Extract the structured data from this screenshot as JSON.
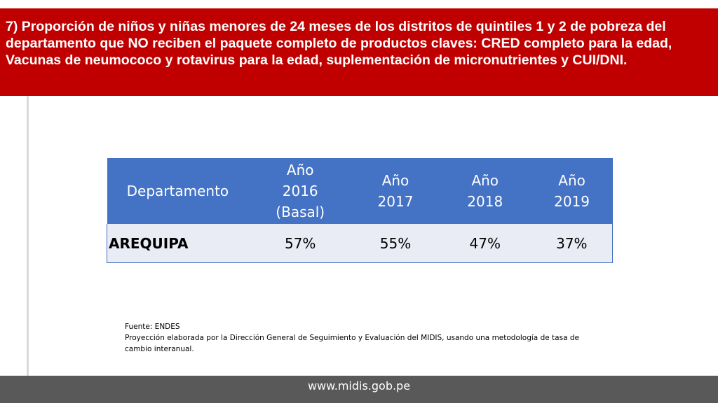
{
  "title": "7) Proporción de niños y niñas menores de 24 meses de los distritos de quintiles 1 y 2 de pobreza del departamento que NO reciben el paquete completo de productos claves: CRED completo para la edad, Vacunas de neumococo y rotavirus para la edad, suplementación de micronutrientes y CUI/DNI.",
  "table": {
    "headers": {
      "departamento": "Departamento",
      "y2016": [
        "Año",
        "2016",
        "(Basal)"
      ],
      "y2017": [
        "Año",
        "2017"
      ],
      "y2018": [
        "Año",
        "2018"
      ],
      "y2019": [
        "Año",
        "2019"
      ]
    },
    "rows": [
      {
        "departamento": "AREQUIPA",
        "y2016": "57%",
        "y2017": "55%",
        "y2018": "47%",
        "y2019": "37%"
      }
    ]
  },
  "source": {
    "line1": "Fuente: ENDES",
    "line2": "Proyección elaborada por la Dirección General de Seguimiento y Evaluación del MIDIS, usando una metodología de tasa de cambio  interanual."
  },
  "footer": {
    "url": "www.midis.gob.pe"
  },
  "colors": {
    "banner": "#c00000",
    "header": "#4472c4",
    "row": "#e9ebf5",
    "footer": "#595959"
  }
}
